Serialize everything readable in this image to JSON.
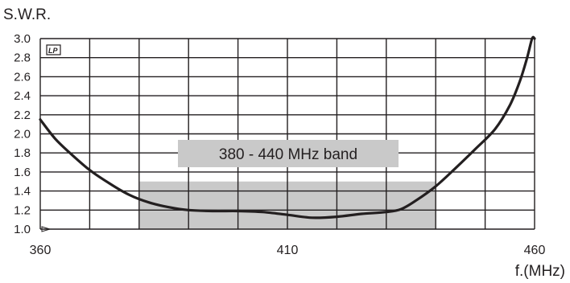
{
  "chart_data": {
    "type": "line",
    "ylabel": "S.W.R.",
    "xlabel": "f.(MHz)",
    "xlim": [
      360,
      460
    ],
    "ylim": [
      1.0,
      3.0
    ],
    "x_ticks": [
      "360",
      "410",
      "460"
    ],
    "y_ticks": [
      "3.0",
      "2.8",
      "2.6",
      "2.4",
      "2.2",
      "2.0",
      "1.8",
      "1.6",
      "1.4",
      "1.2",
      "1.0"
    ],
    "grid": true,
    "logo": "LP",
    "band": {
      "label": "380 - 440 MHz band",
      "from": 380,
      "to": 440,
      "top": 1.5
    },
    "series": [
      {
        "color": "#231f20",
        "points": [
          [
            360,
            2.15
          ],
          [
            363,
            1.95
          ],
          [
            366,
            1.8
          ],
          [
            370,
            1.62
          ],
          [
            374,
            1.48
          ],
          [
            378,
            1.36
          ],
          [
            382,
            1.28
          ],
          [
            386,
            1.23
          ],
          [
            390,
            1.2
          ],
          [
            395,
            1.19
          ],
          [
            400,
            1.19
          ],
          [
            405,
            1.18
          ],
          [
            410,
            1.15
          ],
          [
            415,
            1.12
          ],
          [
            420,
            1.13
          ],
          [
            425,
            1.16
          ],
          [
            430,
            1.18
          ],
          [
            433,
            1.21
          ],
          [
            436,
            1.3
          ],
          [
            440,
            1.45
          ],
          [
            444,
            1.64
          ],
          [
            448,
            1.84
          ],
          [
            452,
            2.05
          ],
          [
            455,
            2.3
          ],
          [
            457,
            2.55
          ],
          [
            458.5,
            2.8
          ],
          [
            459.5,
            3.0
          ],
          [
            460,
            3.0
          ]
        ]
      }
    ]
  }
}
